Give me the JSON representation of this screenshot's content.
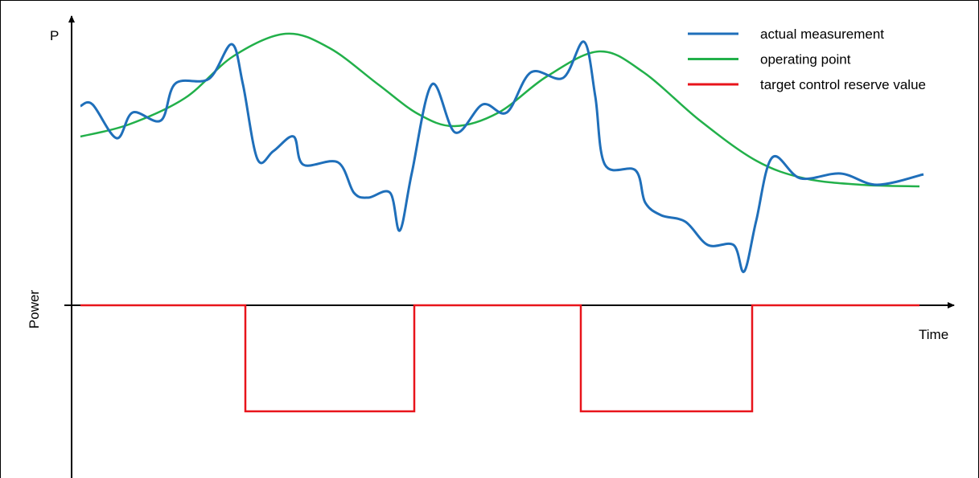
{
  "axis": {
    "y_symbol": "P",
    "y_label": "Power",
    "x_label": "Time"
  },
  "legend": {
    "items": [
      {
        "label": "actual measurement",
        "color": "#1f6fba"
      },
      {
        "label": "operating point",
        "color": "#22b04a"
      },
      {
        "label": "target control reserve value",
        "color": "#e8141b"
      }
    ]
  }
}
